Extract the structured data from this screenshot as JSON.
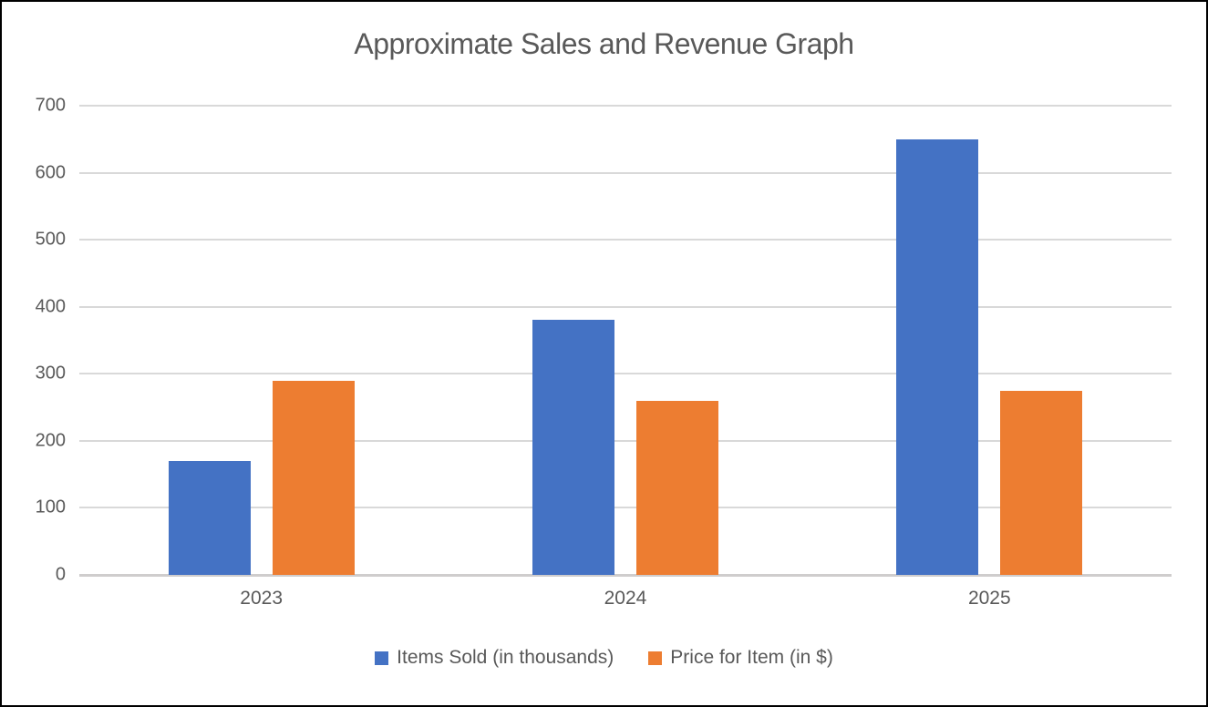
{
  "title": "Approximate Sales and Revenue Graph",
  "ui_colors": {
    "text": "#595959",
    "gridline": "#d9d9d9",
    "axis_line": "#cfcdcd",
    "border": "#000000",
    "background": "#ffffff"
  },
  "chart_data": {
    "type": "bar",
    "title": "Approximate Sales and Revenue Graph",
    "categories": [
      "2023",
      "2024",
      "2025"
    ],
    "series": [
      {
        "name": "Items Sold (in thousands)",
        "color": "#4472C4",
        "values": [
          170,
          380,
          650
        ]
      },
      {
        "name": "Price for Item (in $)",
        "color": "#ED7D31",
        "values": [
          290,
          260,
          275
        ]
      }
    ],
    "xlabel": "",
    "ylabel": "",
    "ylim": [
      0,
      700
    ],
    "yticks": [
      0,
      100,
      200,
      300,
      400,
      500,
      600,
      700
    ],
    "grid": true,
    "legend_position": "bottom"
  }
}
